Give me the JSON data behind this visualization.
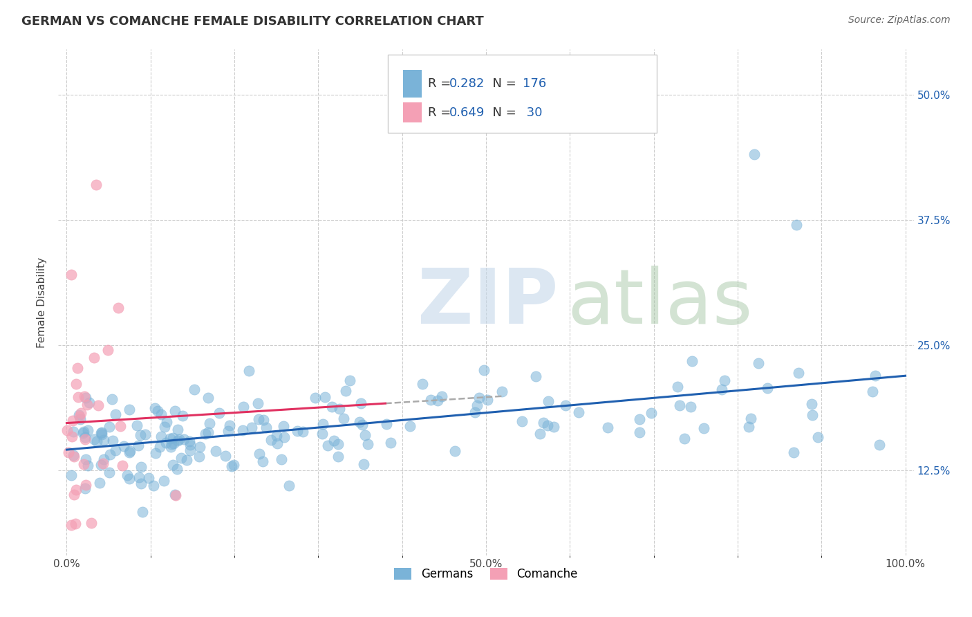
{
  "title": "GERMAN VS COMANCHE FEMALE DISABILITY CORRELATION CHART",
  "source": "Source: ZipAtlas.com",
  "ylabel": "Female Disability",
  "german_color": "#7ab3d8",
  "comanche_color": "#f4a0b5",
  "german_line_color": "#2060b0",
  "comanche_line_color": "#e03060",
  "dash_color": "#aaaaaa",
  "german_R": 0.282,
  "german_N": 176,
  "comanche_R": 0.649,
  "comanche_N": 30,
  "background_color": "#ffffff",
  "grid_color": "#cccccc",
  "yticks": [
    0.125,
    0.25,
    0.375,
    0.5
  ],
  "ytick_labels": [
    "12.5%",
    "25.0%",
    "37.5%",
    "50.0%"
  ],
  "xlim": [
    -0.01,
    1.01
  ],
  "ylim": [
    0.04,
    0.545
  ],
  "title_fontsize": 13,
  "tick_fontsize": 11,
  "legend_fontsize": 13
}
